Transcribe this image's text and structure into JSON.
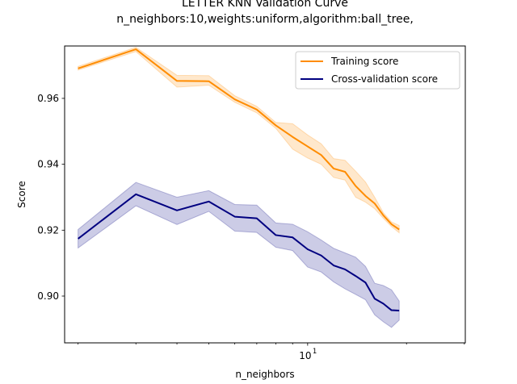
{
  "chart_data": {
    "type": "line",
    "title_lines": [
      "LETTER KNN Validation Curve",
      "n_neighbors:10,weights:uniform,algorithm:ball_tree,"
    ],
    "xlabel": "n_neighbors",
    "ylabel": "Score",
    "xscale": "log",
    "xlim": [
      1.82,
      30.2
    ],
    "ylim": [
      0.8858,
      0.9759
    ],
    "x_major_ticks": [
      {
        "value": 10,
        "label": "10",
        "superscript": "1"
      }
    ],
    "x_minor_ticks": [
      2,
      3,
      4,
      5,
      6,
      7,
      8,
      9,
      20,
      30
    ],
    "y_ticks": [
      0.9,
      0.92,
      0.94,
      0.96
    ],
    "y_tick_labels": [
      "0.90",
      "0.92",
      "0.94",
      "0.96"
    ],
    "grid": false,
    "legend_position": "upper right",
    "x": [
      2,
      3,
      4,
      5,
      6,
      7,
      8,
      9,
      10,
      11,
      12,
      13,
      14,
      15,
      16,
      17,
      18,
      19
    ],
    "series": [
      {
        "name": "Training score",
        "color": "#ff8c00",
        "mean": [
          0.9691,
          0.9749,
          0.9653,
          0.9652,
          0.9597,
          0.9566,
          0.9518,
          0.9483,
          0.9454,
          0.9428,
          0.9387,
          0.9377,
          0.9334,
          0.9304,
          0.9281,
          0.9245,
          0.9218,
          0.9202
        ],
        "lower": [
          0.9686,
          0.9742,
          0.9634,
          0.964,
          0.9588,
          0.9556,
          0.9509,
          0.9446,
          0.9419,
          0.94,
          0.936,
          0.9352,
          0.93,
          0.9285,
          0.9265,
          0.9236,
          0.9211,
          0.9192
        ],
        "upper": [
          0.9697,
          0.9755,
          0.967,
          0.9669,
          0.9608,
          0.9576,
          0.9527,
          0.9523,
          0.9489,
          0.9462,
          0.9417,
          0.9412,
          0.9379,
          0.9346,
          0.93,
          0.9253,
          0.9225,
          0.9214
        ]
      },
      {
        "name": "Cross-validation score",
        "color": "#000080",
        "mean": [
          0.9174,
          0.9309,
          0.926,
          0.9287,
          0.9241,
          0.9236,
          0.9185,
          0.9178,
          0.9142,
          0.9123,
          0.9093,
          0.9081,
          0.9061,
          0.9041,
          0.8992,
          0.8977,
          0.8957,
          0.8956
        ],
        "lower": [
          0.9146,
          0.9274,
          0.9217,
          0.9257,
          0.9197,
          0.9193,
          0.9148,
          0.9138,
          0.9088,
          0.9073,
          0.9043,
          0.9022,
          0.9005,
          0.8989,
          0.8943,
          0.8922,
          0.8905,
          0.8927
        ],
        "upper": [
          0.9202,
          0.9345,
          0.93,
          0.932,
          0.9278,
          0.9276,
          0.9222,
          0.9218,
          0.9195,
          0.917,
          0.9145,
          0.9131,
          0.9118,
          0.909,
          0.9039,
          0.9032,
          0.9019,
          0.8985
        ]
      }
    ]
  }
}
